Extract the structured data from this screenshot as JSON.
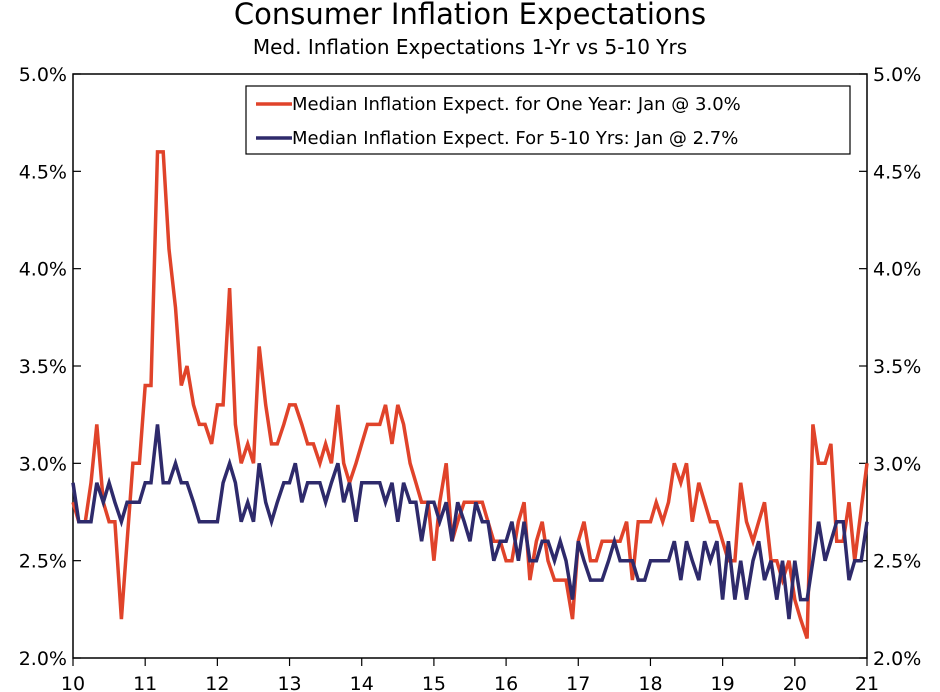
{
  "chart_data": {
    "type": "line",
    "title": "Consumer Inflation Expectations",
    "subtitle": "Med. Inflation Expectations 1-Yr vs 5-10 Yrs",
    "xlabel": "",
    "ylabel": "",
    "x_range": [
      2010,
      2021
    ],
    "ylim": [
      2.0,
      5.0
    ],
    "y_ticks": [
      "2.0%",
      "2.5%",
      "3.0%",
      "3.5%",
      "4.0%",
      "4.5%",
      "5.0%"
    ],
    "y_tick_values": [
      2.0,
      2.5,
      3.0,
      3.5,
      4.0,
      4.5,
      5.0
    ],
    "x_ticks": [
      "10",
      "11",
      "12",
      "13",
      "14",
      "15",
      "16",
      "17",
      "18",
      "19",
      "20",
      "21"
    ],
    "x_tick_values": [
      2010,
      2011,
      2012,
      2013,
      2014,
      2015,
      2016,
      2017,
      2018,
      2019,
      2020,
      2021
    ],
    "grid": false,
    "legend_position": "top-right",
    "series": [
      {
        "name": "Median Inflation Expect. for One Year: Jan @ 3.0%",
        "color": "#e0432a",
        "points": [
          [
            2010.0,
            2.8
          ],
          [
            2010.08,
            2.7
          ],
          [
            2010.17,
            2.7
          ],
          [
            2010.25,
            2.9
          ],
          [
            2010.33,
            3.2
          ],
          [
            2010.42,
            2.8
          ],
          [
            2010.5,
            2.7
          ],
          [
            2010.58,
            2.7
          ],
          [
            2010.67,
            2.2
          ],
          [
            2010.75,
            2.6
          ],
          [
            2010.83,
            3.0
          ],
          [
            2010.92,
            3.0
          ],
          [
            2011.0,
            3.4
          ],
          [
            2011.08,
            3.4
          ],
          [
            2011.17,
            4.6
          ],
          [
            2011.25,
            4.6
          ],
          [
            2011.33,
            4.1
          ],
          [
            2011.42,
            3.8
          ],
          [
            2011.5,
            3.4
          ],
          [
            2011.58,
            3.5
          ],
          [
            2011.67,
            3.3
          ],
          [
            2011.75,
            3.2
          ],
          [
            2011.83,
            3.2
          ],
          [
            2011.92,
            3.1
          ],
          [
            2012.0,
            3.3
          ],
          [
            2012.08,
            3.3
          ],
          [
            2012.17,
            3.9
          ],
          [
            2012.25,
            3.2
          ],
          [
            2012.33,
            3.0
          ],
          [
            2012.42,
            3.1
          ],
          [
            2012.5,
            3.0
          ],
          [
            2012.58,
            3.6
          ],
          [
            2012.67,
            3.3
          ],
          [
            2012.75,
            3.1
          ],
          [
            2012.83,
            3.1
          ],
          [
            2012.92,
            3.2
          ],
          [
            2013.0,
            3.3
          ],
          [
            2013.08,
            3.3
          ],
          [
            2013.17,
            3.2
          ],
          [
            2013.25,
            3.1
          ],
          [
            2013.33,
            3.1
          ],
          [
            2013.42,
            3.0
          ],
          [
            2013.5,
            3.1
          ],
          [
            2013.58,
            3.0
          ],
          [
            2013.67,
            3.3
          ],
          [
            2013.75,
            3.0
          ],
          [
            2013.83,
            2.9
          ],
          [
            2013.92,
            3.0
          ],
          [
            2014.0,
            3.1
          ],
          [
            2014.08,
            3.2
          ],
          [
            2014.17,
            3.2
          ],
          [
            2014.25,
            3.2
          ],
          [
            2014.33,
            3.3
          ],
          [
            2014.42,
            3.1
          ],
          [
            2014.5,
            3.3
          ],
          [
            2014.58,
            3.2
          ],
          [
            2014.67,
            3.0
          ],
          [
            2014.75,
            2.9
          ],
          [
            2014.83,
            2.8
          ],
          [
            2014.92,
            2.8
          ],
          [
            2015.0,
            2.5
          ],
          [
            2015.08,
            2.8
          ],
          [
            2015.17,
            3.0
          ],
          [
            2015.25,
            2.6
          ],
          [
            2015.33,
            2.7
          ],
          [
            2015.42,
            2.8
          ],
          [
            2015.5,
            2.8
          ],
          [
            2015.58,
            2.8
          ],
          [
            2015.67,
            2.8
          ],
          [
            2015.75,
            2.7
          ],
          [
            2015.83,
            2.6
          ],
          [
            2015.92,
            2.6
          ],
          [
            2016.0,
            2.5
          ],
          [
            2016.08,
            2.5
          ],
          [
            2016.17,
            2.7
          ],
          [
            2016.25,
            2.8
          ],
          [
            2016.33,
            2.4
          ],
          [
            2016.42,
            2.6
          ],
          [
            2016.5,
            2.7
          ],
          [
            2016.58,
            2.5
          ],
          [
            2016.67,
            2.4
          ],
          [
            2016.75,
            2.4
          ],
          [
            2016.83,
            2.4
          ],
          [
            2016.92,
            2.2
          ],
          [
            2017.0,
            2.6
          ],
          [
            2017.08,
            2.7
          ],
          [
            2017.17,
            2.5
          ],
          [
            2017.25,
            2.5
          ],
          [
            2017.33,
            2.6
          ],
          [
            2017.42,
            2.6
          ],
          [
            2017.5,
            2.6
          ],
          [
            2017.58,
            2.6
          ],
          [
            2017.67,
            2.7
          ],
          [
            2017.75,
            2.4
          ],
          [
            2017.83,
            2.7
          ],
          [
            2017.92,
            2.7
          ],
          [
            2018.0,
            2.7
          ],
          [
            2018.08,
            2.8
          ],
          [
            2018.17,
            2.7
          ],
          [
            2018.25,
            2.8
          ],
          [
            2018.33,
            3.0
          ],
          [
            2018.42,
            2.9
          ],
          [
            2018.5,
            3.0
          ],
          [
            2018.58,
            2.7
          ],
          [
            2018.67,
            2.9
          ],
          [
            2018.75,
            2.8
          ],
          [
            2018.83,
            2.7
          ],
          [
            2018.92,
            2.7
          ],
          [
            2019.0,
            2.6
          ],
          [
            2019.08,
            2.5
          ],
          [
            2019.17,
            2.5
          ],
          [
            2019.25,
            2.9
          ],
          [
            2019.33,
            2.7
          ],
          [
            2019.42,
            2.6
          ],
          [
            2019.5,
            2.7
          ],
          [
            2019.58,
            2.8
          ],
          [
            2019.67,
            2.5
          ],
          [
            2019.75,
            2.5
          ],
          [
            2019.83,
            2.4
          ],
          [
            2019.92,
            2.5
          ],
          [
            2020.0,
            2.3
          ],
          [
            2020.08,
            2.2
          ],
          [
            2020.17,
            2.1
          ],
          [
            2020.25,
            3.2
          ],
          [
            2020.33,
            3.0
          ],
          [
            2020.42,
            3.0
          ],
          [
            2020.5,
            3.1
          ],
          [
            2020.58,
            2.6
          ],
          [
            2020.67,
            2.6
          ],
          [
            2020.75,
            2.8
          ],
          [
            2020.83,
            2.5
          ],
          [
            2021.0,
            3.0
          ]
        ]
      },
      {
        "name": "Median Inflation Expect. For 5-10 Yrs: Jan @ 2.7%",
        "color": "#2e2a6b",
        "points": [
          [
            2010.0,
            2.9
          ],
          [
            2010.08,
            2.7
          ],
          [
            2010.17,
            2.7
          ],
          [
            2010.25,
            2.7
          ],
          [
            2010.33,
            2.9
          ],
          [
            2010.42,
            2.8
          ],
          [
            2010.5,
            2.9
          ],
          [
            2010.58,
            2.8
          ],
          [
            2010.67,
            2.7
          ],
          [
            2010.75,
            2.8
          ],
          [
            2010.83,
            2.8
          ],
          [
            2010.92,
            2.8
          ],
          [
            2011.0,
            2.9
          ],
          [
            2011.08,
            2.9
          ],
          [
            2011.17,
            3.2
          ],
          [
            2011.25,
            2.9
          ],
          [
            2011.33,
            2.9
          ],
          [
            2011.42,
            3.0
          ],
          [
            2011.5,
            2.9
          ],
          [
            2011.58,
            2.9
          ],
          [
            2011.67,
            2.8
          ],
          [
            2011.75,
            2.7
          ],
          [
            2011.83,
            2.7
          ],
          [
            2011.92,
            2.7
          ],
          [
            2012.0,
            2.7
          ],
          [
            2012.08,
            2.9
          ],
          [
            2012.17,
            3.0
          ],
          [
            2012.25,
            2.9
          ],
          [
            2012.33,
            2.7
          ],
          [
            2012.42,
            2.8
          ],
          [
            2012.5,
            2.7
          ],
          [
            2012.58,
            3.0
          ],
          [
            2012.67,
            2.8
          ],
          [
            2012.75,
            2.7
          ],
          [
            2012.83,
            2.8
          ],
          [
            2012.92,
            2.9
          ],
          [
            2013.0,
            2.9
          ],
          [
            2013.08,
            3.0
          ],
          [
            2013.17,
            2.8
          ],
          [
            2013.25,
            2.9
          ],
          [
            2013.33,
            2.9
          ],
          [
            2013.42,
            2.9
          ],
          [
            2013.5,
            2.8
          ],
          [
            2013.58,
            2.9
          ],
          [
            2013.67,
            3.0
          ],
          [
            2013.75,
            2.8
          ],
          [
            2013.83,
            2.9
          ],
          [
            2013.92,
            2.7
          ],
          [
            2014.0,
            2.9
          ],
          [
            2014.08,
            2.9
          ],
          [
            2014.17,
            2.9
          ],
          [
            2014.25,
            2.9
          ],
          [
            2014.33,
            2.8
          ],
          [
            2014.42,
            2.9
          ],
          [
            2014.5,
            2.7
          ],
          [
            2014.58,
            2.9
          ],
          [
            2014.67,
            2.8
          ],
          [
            2014.75,
            2.8
          ],
          [
            2014.83,
            2.6
          ],
          [
            2014.92,
            2.8
          ],
          [
            2015.0,
            2.8
          ],
          [
            2015.08,
            2.7
          ],
          [
            2015.17,
            2.8
          ],
          [
            2015.25,
            2.6
          ],
          [
            2015.33,
            2.8
          ],
          [
            2015.42,
            2.7
          ],
          [
            2015.5,
            2.6
          ],
          [
            2015.58,
            2.8
          ],
          [
            2015.67,
            2.7
          ],
          [
            2015.75,
            2.7
          ],
          [
            2015.83,
            2.5
          ],
          [
            2015.92,
            2.6
          ],
          [
            2016.0,
            2.6
          ],
          [
            2016.08,
            2.7
          ],
          [
            2016.17,
            2.5
          ],
          [
            2016.25,
            2.7
          ],
          [
            2016.33,
            2.5
          ],
          [
            2016.42,
            2.5
          ],
          [
            2016.5,
            2.6
          ],
          [
            2016.58,
            2.6
          ],
          [
            2016.67,
            2.5
          ],
          [
            2016.75,
            2.6
          ],
          [
            2016.83,
            2.5
          ],
          [
            2016.92,
            2.3
          ],
          [
            2017.0,
            2.6
          ],
          [
            2017.08,
            2.5
          ],
          [
            2017.17,
            2.4
          ],
          [
            2017.25,
            2.4
          ],
          [
            2017.33,
            2.4
          ],
          [
            2017.42,
            2.5
          ],
          [
            2017.5,
            2.6
          ],
          [
            2017.58,
            2.5
          ],
          [
            2017.67,
            2.5
          ],
          [
            2017.75,
            2.5
          ],
          [
            2017.83,
            2.4
          ],
          [
            2017.92,
            2.4
          ],
          [
            2018.0,
            2.5
          ],
          [
            2018.08,
            2.5
          ],
          [
            2018.17,
            2.5
          ],
          [
            2018.25,
            2.5
          ],
          [
            2018.33,
            2.6
          ],
          [
            2018.42,
            2.4
          ],
          [
            2018.5,
            2.6
          ],
          [
            2018.58,
            2.5
          ],
          [
            2018.67,
            2.4
          ],
          [
            2018.75,
            2.6
          ],
          [
            2018.83,
            2.5
          ],
          [
            2018.92,
            2.6
          ],
          [
            2019.0,
            2.3
          ],
          [
            2019.08,
            2.6
          ],
          [
            2019.17,
            2.3
          ],
          [
            2019.25,
            2.5
          ],
          [
            2019.33,
            2.3
          ],
          [
            2019.42,
            2.5
          ],
          [
            2019.5,
            2.6
          ],
          [
            2019.58,
            2.4
          ],
          [
            2019.67,
            2.5
          ],
          [
            2019.75,
            2.3
          ],
          [
            2019.83,
            2.5
          ],
          [
            2019.92,
            2.2
          ],
          [
            2020.0,
            2.5
          ],
          [
            2020.08,
            2.3
          ],
          [
            2020.17,
            2.3
          ],
          [
            2020.25,
            2.5
          ],
          [
            2020.33,
            2.7
          ],
          [
            2020.42,
            2.5
          ],
          [
            2020.5,
            2.6
          ],
          [
            2020.58,
            2.7
          ],
          [
            2020.67,
            2.7
          ],
          [
            2020.75,
            2.4
          ],
          [
            2020.83,
            2.5
          ],
          [
            2020.92,
            2.5
          ],
          [
            2021.0,
            2.7
          ]
        ]
      }
    ]
  }
}
